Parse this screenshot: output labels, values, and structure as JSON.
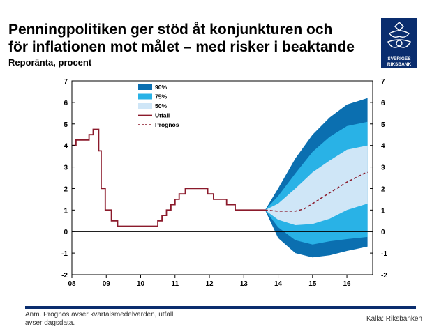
{
  "header": {
    "title_line1": "Penningpolitiken ger stöd åt konjunkturen och",
    "title_line2": "för inflationen mot målet – med risker i beaktande",
    "subtitle": "Reporänta, procent"
  },
  "logo": {
    "text_line1": "SVERIGES",
    "text_line2": "RIKSBANK",
    "color": "#0a2d6e"
  },
  "footer": {
    "note_line1": "Anm. Prognos avser kvartalsmedelvärden, utfall",
    "note_line2": "avser dagsdata.",
    "source": "Källa: Riksbanken"
  },
  "colors": {
    "band90": "#0b6fb0",
    "band75": "#29b2e6",
    "band50": "#cfe6f7",
    "outcome": "#8b1a2b",
    "forecast": "#8b1a2b",
    "zero": "#000000"
  },
  "chart_data": {
    "type": "line",
    "xlim": [
      2008,
      2016.75
    ],
    "ylim": [
      -2,
      7
    ],
    "x_ticks": [
      {
        "value": 2008,
        "label": "08"
      },
      {
        "value": 2009,
        "label": "09"
      },
      {
        "value": 2010,
        "label": "10"
      },
      {
        "value": 2011,
        "label": "11"
      },
      {
        "value": 2012,
        "label": "12"
      },
      {
        "value": 2013,
        "label": "13"
      },
      {
        "value": 2014,
        "label": "14"
      },
      {
        "value": 2015,
        "label": "15"
      },
      {
        "value": 2016,
        "label": "16"
      }
    ],
    "y_ticks": [
      -2,
      -1,
      0,
      1,
      2,
      3,
      4,
      5,
      6,
      7
    ],
    "legend": {
      "position": "top-left",
      "items": [
        {
          "label": "90%",
          "kind": "band90"
        },
        {
          "label": "75%",
          "kind": "band75"
        },
        {
          "label": "50%",
          "kind": "band50"
        },
        {
          "label": "Utfall",
          "kind": "outcome"
        },
        {
          "label": "Prognos",
          "kind": "forecast"
        }
      ]
    },
    "outcome": {
      "name": "Utfall",
      "x": [
        2008.0,
        2008.12,
        2008.5,
        2008.62,
        2008.69,
        2008.78,
        2008.85,
        2008.97,
        2009.15,
        2009.33,
        2009.55,
        2010.5,
        2010.62,
        2010.75,
        2010.88,
        2011.0,
        2011.12,
        2011.3,
        2011.5,
        2011.95,
        2012.12,
        2012.5,
        2012.75,
        2013.0,
        2013.62
      ],
      "y": [
        4.0,
        4.25,
        4.5,
        4.75,
        4.75,
        3.75,
        2.0,
        1.0,
        0.5,
        0.25,
        0.25,
        0.5,
        0.75,
        1.0,
        1.25,
        1.5,
        1.75,
        2.0,
        2.0,
        1.75,
        1.5,
        1.25,
        1.0,
        1.0,
        1.0
      ]
    },
    "forecast": {
      "name": "Prognos",
      "x": [
        2013.62,
        2014.0,
        2014.5,
        2014.75,
        2015.0,
        2015.25,
        2015.5,
        2015.75,
        2016.0,
        2016.25,
        2016.5,
        2016.6
      ],
      "y": [
        1.0,
        0.95,
        0.95,
        1.05,
        1.3,
        1.55,
        1.8,
        2.05,
        2.3,
        2.5,
        2.7,
        2.75
      ]
    },
    "bands": {
      "x": [
        2013.62,
        2014.0,
        2014.5,
        2015.0,
        2015.5,
        2016.0,
        2016.6
      ],
      "p90_upper": [
        1.0,
        2.0,
        3.4,
        4.5,
        5.3,
        5.9,
        6.2
      ],
      "p90_lower": [
        1.0,
        -0.3,
        -1.0,
        -1.2,
        -1.1,
        -0.9,
        -0.7
      ],
      "p75_upper": [
        1.0,
        1.65,
        2.7,
        3.7,
        4.4,
        4.9,
        5.1
      ],
      "p75_lower": [
        1.0,
        0.2,
        -0.4,
        -0.6,
        -0.45,
        -0.35,
        -0.25
      ],
      "p50_upper": [
        1.0,
        1.3,
        2.0,
        2.75,
        3.3,
        3.8,
        4.0
      ],
      "p50_lower": [
        1.0,
        0.55,
        0.3,
        0.35,
        0.6,
        1.0,
        1.3
      ]
    }
  }
}
